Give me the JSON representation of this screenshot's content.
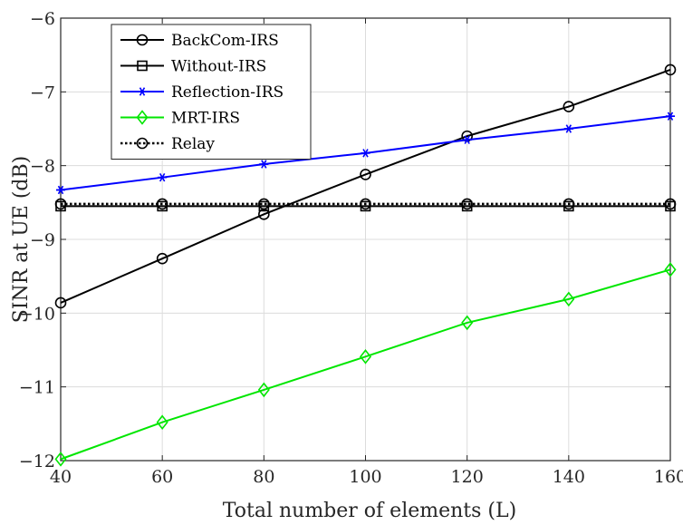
{
  "chart_data": {
    "type": "line",
    "title": "",
    "xlabel": "Total number of elements (L)",
    "ylabel": "SINR at UE (dB)",
    "x": [
      40,
      60,
      80,
      100,
      120,
      140,
      160
    ],
    "xlim": [
      40,
      160
    ],
    "ylim": [
      -12,
      -6
    ],
    "xticks": [
      "40",
      "60",
      "80",
      "100",
      "120",
      "140",
      "160"
    ],
    "yticks": [
      "−6",
      "−7",
      "−8",
      "−9",
      "−10",
      "−11",
      "−12"
    ],
    "grid": true,
    "legend_position": "top-left",
    "series": [
      {
        "name": "BackCom-IRS",
        "color": "#000000",
        "marker": "circle",
        "dashed": false,
        "values": [
          -9.86,
          -9.26,
          -8.66,
          -8.12,
          -7.6,
          -7.2,
          -6.7
        ]
      },
      {
        "name": "Without-IRS",
        "color": "#000000",
        "marker": "square",
        "dashed": false,
        "values": [
          -8.55,
          -8.55,
          -8.55,
          -8.55,
          -8.55,
          -8.55,
          -8.55
        ]
      },
      {
        "name": "Reflection-IRS",
        "color": "#0000ff",
        "marker": "star",
        "dashed": false,
        "values": [
          -8.33,
          -8.16,
          -7.98,
          -7.83,
          -7.65,
          -7.5,
          -7.33
        ]
      },
      {
        "name": "MRT-IRS",
        "color": "#00e600",
        "marker": "diamond",
        "dashed": false,
        "values": [
          -11.98,
          -11.48,
          -11.04,
          -10.59,
          -10.13,
          -9.81,
          -9.41
        ]
      },
      {
        "name": "Relay",
        "color": "#000000",
        "marker": "circle",
        "dashed": true,
        "values": [
          -8.52,
          -8.52,
          -8.52,
          -8.52,
          -8.52,
          -8.52,
          -8.52
        ]
      }
    ]
  }
}
